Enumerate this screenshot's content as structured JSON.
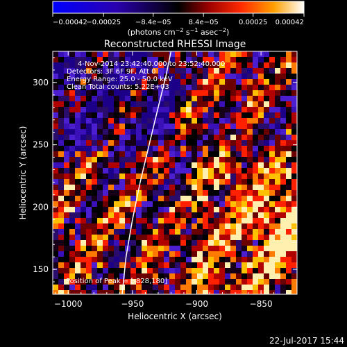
{
  "chart_data": {
    "type": "heatmap",
    "title": "Reconstructed RHESSI Image",
    "xlabel": "Heliocentric X (arcsec)",
    "ylabel": "Heliocentric Y (arcsec)",
    "xlim": [
      -1012,
      -822
    ],
    "ylim": [
      130,
      325
    ],
    "x_ticks": [
      -1000,
      -950,
      -900,
      -850
    ],
    "x_tick_labels": [
      "−1000",
      "−950",
      "−900",
      "−850"
    ],
    "y_ticks": [
      150,
      200,
      250,
      300
    ],
    "y_tick_labels": [
      "150",
      "200",
      "250",
      "300"
    ],
    "colorbar": {
      "min": -0.00042,
      "max": 0.00042,
      "ticks": [
        -0.00042,
        -0.00025,
        -8.4e-05,
        8.4e-05,
        0.00025,
        0.00042
      ],
      "tick_labels": [
        "−0.00042",
        "−0.00025",
        "−8.4e−05",
        "8.4e−05",
        "0.00025",
        "0.00042"
      ],
      "unit_main": "(photons cm",
      "unit_sup1": "−2",
      "unit_mid": " s",
      "unit_sup2": "−1",
      "unit_end": " asec",
      "unit_sup3": "−2",
      "unit_close": ")"
    },
    "info_lines": [
      "4-Nov-2014 23:42:40.000 to 23:52:40.000",
      "Detectors: 3F 6F 9F, Att 0",
      "Energy Range: 25.0 - 50.0 keV",
      "Clean     Total counts: 5.22E+03"
    ],
    "peak_label": "Position of Peak = [-828,180]",
    "peak": [
      -828,
      180
    ],
    "limb_curve": [
      [
        -958,
        130
      ],
      [
        -955,
        160
      ],
      [
        -950,
        190
      ],
      [
        -944,
        220
      ],
      [
        -937,
        250
      ],
      [
        -930,
        280
      ],
      [
        -924,
        305
      ],
      [
        -920,
        325
      ]
    ],
    "grid": false
  },
  "footer": {
    "timestamp": "22-Jul-2017 15:44"
  }
}
